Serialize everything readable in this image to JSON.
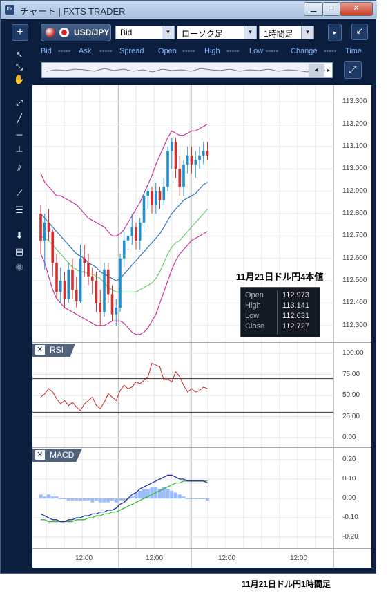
{
  "window": {
    "title": "チャート | FXTS TRADER",
    "app_icon": "FX"
  },
  "toolbar": {
    "symbol": "USD/JPY",
    "price_type": "Bid",
    "chart_type": "ローソク足",
    "timeframe": "1時間足"
  },
  "quote_bar": {
    "labels": [
      "Bid",
      "Ask",
      "Spread",
      "Open",
      "High",
      "Low",
      "Change",
      "Time"
    ],
    "dashes": "-----"
  },
  "price_axis": [
    "113.300",
    "113.200",
    "113.100",
    "113.000",
    "112.900",
    "112.800",
    "112.700",
    "112.600",
    "112.500",
    "112.400",
    "112.300"
  ],
  "rsi": {
    "name": "RSI",
    "axis": [
      "100.00",
      "75.00",
      "50.00",
      "25.00",
      "0.00"
    ]
  },
  "macd": {
    "name": "MACD",
    "axis": [
      "0.20",
      "0.10",
      "0.00",
      "-0.10",
      "-0.20"
    ]
  },
  "time_axis": [
    "12:00",
    "12:00",
    "12:00",
    "12:00"
  ],
  "annotation_top": "11月21日ドル円4本値",
  "ohlc": {
    "open_label": "Open",
    "open": "112.973",
    "high_label": "High",
    "high": "113.141",
    "low_label": "Low",
    "low": "112.631",
    "close_label": "Close",
    "close": "112.727"
  },
  "caption": "11月21日ドル円1時間足",
  "colors": {
    "window_bg": "#0b1e3d",
    "bull": "#1f8fd0",
    "bear": "#d03030",
    "bb": "#cc3399",
    "ma_blue": "#2b6fbf",
    "ma_green": "#66cc66",
    "rsi": "#cc2222",
    "macd_line": "#1f2fa8",
    "signal": "#33bb33",
    "hist": "#99bbff"
  },
  "chart_data": {
    "type": "candlestick",
    "ohlc": [
      {
        "o": 112.8,
        "h": 112.84,
        "l": 112.62,
        "c": 112.68
      },
      {
        "o": 112.68,
        "h": 112.8,
        "l": 112.55,
        "c": 112.76
      },
      {
        "o": 112.76,
        "h": 112.82,
        "l": 112.68,
        "c": 112.72
      },
      {
        "o": 112.72,
        "h": 112.73,
        "l": 112.52,
        "c": 112.58
      },
      {
        "o": 112.58,
        "h": 112.62,
        "l": 112.42,
        "c": 112.45
      },
      {
        "o": 112.45,
        "h": 112.56,
        "l": 112.4,
        "c": 112.5
      },
      {
        "o": 112.5,
        "h": 112.54,
        "l": 112.38,
        "c": 112.42
      },
      {
        "o": 112.42,
        "h": 112.58,
        "l": 112.4,
        "c": 112.55
      },
      {
        "o": 112.55,
        "h": 112.6,
        "l": 112.42,
        "c": 112.46
      },
      {
        "o": 112.46,
        "h": 112.52,
        "l": 112.38,
        "c": 112.41
      },
      {
        "o": 112.41,
        "h": 112.66,
        "l": 112.4,
        "c": 112.6
      },
      {
        "o": 112.6,
        "h": 112.66,
        "l": 112.52,
        "c": 112.58
      },
      {
        "o": 112.58,
        "h": 112.62,
        "l": 112.48,
        "c": 112.52
      },
      {
        "o": 112.52,
        "h": 112.56,
        "l": 112.44,
        "c": 112.5
      },
      {
        "o": 112.5,
        "h": 112.54,
        "l": 112.36,
        "c": 112.4
      },
      {
        "o": 112.4,
        "h": 112.46,
        "l": 112.3,
        "c": 112.36
      },
      {
        "o": 112.36,
        "h": 112.58,
        "l": 112.34,
        "c": 112.55
      },
      {
        "o": 112.55,
        "h": 112.58,
        "l": 112.4,
        "c": 112.44
      },
      {
        "o": 112.44,
        "h": 112.48,
        "l": 112.32,
        "c": 112.35
      },
      {
        "o": 112.35,
        "h": 112.42,
        "l": 112.3,
        "c": 112.38
      },
      {
        "o": 112.38,
        "h": 112.62,
        "l": 112.36,
        "c": 112.6
      },
      {
        "o": 112.6,
        "h": 112.72,
        "l": 112.56,
        "c": 112.68
      },
      {
        "o": 112.68,
        "h": 112.74,
        "l": 112.64,
        "c": 112.7
      },
      {
        "o": 112.7,
        "h": 112.8,
        "l": 112.66,
        "c": 112.74
      },
      {
        "o": 112.74,
        "h": 112.76,
        "l": 112.64,
        "c": 112.68
      },
      {
        "o": 112.68,
        "h": 112.78,
        "l": 112.64,
        "c": 112.76
      },
      {
        "o": 112.76,
        "h": 112.9,
        "l": 112.72,
        "c": 112.88
      },
      {
        "o": 112.88,
        "h": 112.93,
        "l": 112.82,
        "c": 112.9
      },
      {
        "o": 112.9,
        "h": 112.92,
        "l": 112.8,
        "c": 112.84
      },
      {
        "o": 112.84,
        "h": 112.94,
        "l": 112.8,
        "c": 112.9
      },
      {
        "o": 112.9,
        "h": 112.92,
        "l": 112.82,
        "c": 112.86
      },
      {
        "o": 112.86,
        "h": 112.96,
        "l": 112.84,
        "c": 112.92
      },
      {
        "o": 112.92,
        "h": 113.1,
        "l": 112.9,
        "c": 113.08
      },
      {
        "o": 113.08,
        "h": 113.14,
        "l": 113.0,
        "c": 113.12
      },
      {
        "o": 113.12,
        "h": 113.14,
        "l": 112.96,
        "c": 113.0
      },
      {
        "o": 113.0,
        "h": 113.06,
        "l": 112.88,
        "c": 112.92
      },
      {
        "o": 112.92,
        "h": 113.04,
        "l": 112.88,
        "c": 113.02
      },
      {
        "o": 113.02,
        "h": 113.1,
        "l": 112.98,
        "c": 113.06
      },
      {
        "o": 113.06,
        "h": 113.1,
        "l": 112.98,
        "c": 113.02
      },
      {
        "o": 113.02,
        "h": 113.08,
        "l": 112.96,
        "c": 113.04
      },
      {
        "o": 113.04,
        "h": 113.1,
        "l": 113.0,
        "c": 113.06
      },
      {
        "o": 113.06,
        "h": 113.12,
        "l": 113.02,
        "c": 113.08
      },
      {
        "o": 113.08,
        "h": 113.12,
        "l": 113.04,
        "c": 113.06
      }
    ],
    "bb_upper": [
      112.98,
      112.94,
      112.92,
      112.9,
      112.88,
      112.88,
      112.87,
      112.86,
      112.85,
      112.84,
      112.82,
      112.8,
      112.78,
      112.77,
      112.76,
      112.75,
      112.74,
      112.72,
      112.7,
      112.7,
      112.71,
      112.73,
      112.76,
      112.79,
      112.82,
      112.85,
      112.89,
      112.93,
      112.97,
      113.02,
      113.06,
      113.1,
      113.14,
      113.17,
      113.16,
      113.15,
      113.15,
      113.16,
      113.17,
      113.17,
      113.18,
      113.19,
      113.2
    ],
    "bb_lower": [
      112.62,
      112.58,
      112.52,
      112.46,
      112.42,
      112.4,
      112.38,
      112.37,
      112.36,
      112.35,
      112.34,
      112.33,
      112.32,
      112.31,
      112.3,
      112.3,
      112.3,
      112.31,
      112.32,
      112.32,
      112.32,
      112.31,
      112.29,
      112.27,
      112.26,
      112.26,
      112.27,
      112.29,
      112.32,
      112.35,
      112.4,
      112.45,
      112.5,
      112.55,
      112.59,
      112.62,
      112.64,
      112.66,
      112.68,
      112.69,
      112.7,
      112.71,
      112.72
    ],
    "ma_blue": [
      112.8,
      112.78,
      112.76,
      112.74,
      112.72,
      112.7,
      112.68,
      112.66,
      112.64,
      112.62,
      112.61,
      112.6,
      112.58,
      112.57,
      112.56,
      112.54,
      112.53,
      112.52,
      112.51,
      112.5,
      112.51,
      112.53,
      112.55,
      112.57,
      112.59,
      112.61,
      112.63,
      112.65,
      112.67,
      112.69,
      112.71,
      112.74,
      112.77,
      112.8,
      112.82,
      112.84,
      112.86,
      112.87,
      112.88,
      112.89,
      112.91,
      112.93,
      112.94
    ],
    "ma_green": [
      112.7,
      112.69,
      112.68,
      112.66,
      112.64,
      112.62,
      112.6,
      112.58,
      112.56,
      112.55,
      112.54,
      112.54,
      112.53,
      112.53,
      112.52,
      112.51,
      112.49,
      112.47,
      112.46,
      112.45,
      112.45,
      112.45,
      112.45,
      112.45,
      112.45,
      112.46,
      112.47,
      112.48,
      112.49,
      112.51,
      112.54,
      112.58,
      112.62,
      112.65,
      112.67,
      112.68,
      112.7,
      112.72,
      112.74,
      112.76,
      112.78,
      112.8,
      112.82
    ],
    "rsi": [
      48,
      52,
      58,
      54,
      46,
      40,
      44,
      38,
      42,
      36,
      32,
      40,
      44,
      48,
      38,
      34,
      42,
      52,
      48,
      44,
      56,
      62,
      58,
      60,
      66,
      64,
      68,
      72,
      88,
      86,
      84,
      68,
      70,
      66,
      78,
      72,
      62,
      54,
      58,
      54,
      56,
      60,
      58
    ],
    "macd_line": [
      -0.08,
      -0.09,
      -0.1,
      -0.11,
      -0.11,
      -0.12,
      -0.12,
      -0.11,
      -0.11,
      -0.1,
      -0.1,
      -0.09,
      -0.09,
      -0.08,
      -0.08,
      -0.07,
      -0.07,
      -0.06,
      -0.06,
      -0.05,
      -0.03,
      -0.02,
      0.0,
      0.02,
      0.03,
      0.05,
      0.06,
      0.07,
      0.08,
      0.09,
      0.1,
      0.11,
      0.12,
      0.12,
      0.11,
      0.1,
      0.1,
      0.09,
      0.09,
      0.09,
      0.09,
      0.09,
      0.08
    ],
    "signal_line": [
      -0.11,
      -0.11,
      -0.12,
      -0.12,
      -0.12,
      -0.12,
      -0.12,
      -0.12,
      -0.12,
      -0.11,
      -0.11,
      -0.11,
      -0.1,
      -0.1,
      -0.09,
      -0.09,
      -0.08,
      -0.08,
      -0.07,
      -0.07,
      -0.06,
      -0.05,
      -0.04,
      -0.03,
      -0.02,
      -0.01,
      0.0,
      0.01,
      0.02,
      0.03,
      0.04,
      0.05,
      0.06,
      0.07,
      0.08,
      0.08,
      0.09,
      0.09,
      0.09,
      0.09,
      0.09,
      0.09,
      0.09
    ],
    "histogram": [
      0.02,
      0.01,
      0.02,
      0.01,
      0.01,
      0.0,
      0.0,
      -0.01,
      -0.01,
      -0.01,
      -0.01,
      -0.01,
      -0.01,
      -0.02,
      -0.01,
      -0.02,
      -0.02,
      -0.02,
      -0.01,
      -0.02,
      -0.01,
      -0.01,
      0.0,
      0.01,
      0.03,
      0.04,
      0.05,
      0.05,
      0.06,
      0.06,
      0.05,
      0.06,
      0.05,
      0.04,
      0.03,
      0.02,
      0.01,
      0.0,
      0.0,
      0.0,
      0.0,
      0.0,
      -0.01
    ],
    "ylim_price": [
      112.25,
      113.35
    ],
    "ylim_rsi": [
      0,
      100
    ],
    "ylim_macd": [
      -0.2,
      0.2
    ]
  }
}
